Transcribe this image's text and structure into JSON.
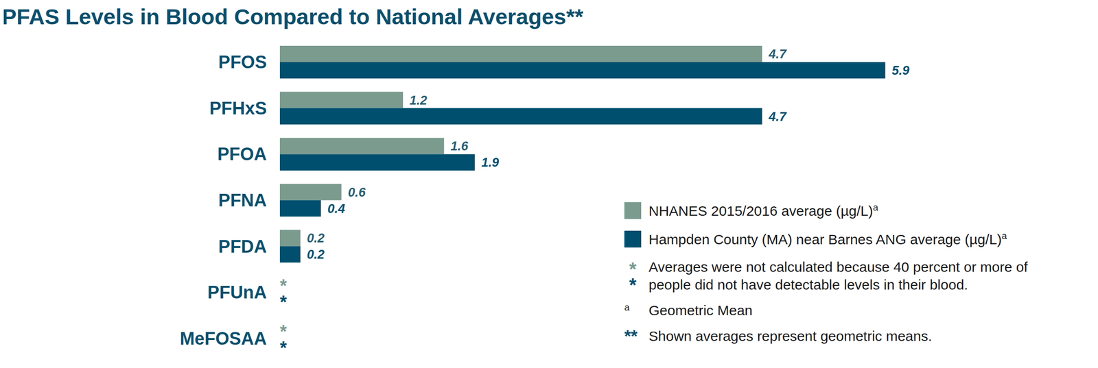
{
  "chart_data": {
    "type": "bar",
    "title": "PFAS Levels in Blood Compared to National Averages**",
    "orientation": "horizontal",
    "categories": [
      "PFOS",
      "PFHxS",
      "PFOA",
      "PFNA",
      "PFDA",
      "PFUnA",
      "MeFOSAA"
    ],
    "series": [
      {
        "name": "NHANES 2015/2016 average (µg/L)",
        "color": "#7b9b8f",
        "values": [
          4.7,
          1.2,
          1.6,
          0.6,
          0.2,
          null,
          null
        ]
      },
      {
        "name": "Hampden County (MA) near Barnes ANG  average (µg/L)",
        "color": "#004f6e",
        "values": [
          5.9,
          4.7,
          1.9,
          0.4,
          0.2,
          null,
          null
        ]
      }
    ],
    "xlim": [
      0,
      7.8
    ],
    "data_labels": true,
    "tick_labels": false,
    "grid": false,
    "legend": "bottom right",
    "annotations": {
      "missing_marker": "*",
      "missing_note": "Averages were not calculated because 40 percent or more of people did not have detectable levels in their blood.",
      "footnote_a_marker": "a",
      "footnote_a": "Geometric Mean",
      "footnote_2_marker": "**",
      "footnote_2": "Shown averages represent geometric means."
    }
  }
}
